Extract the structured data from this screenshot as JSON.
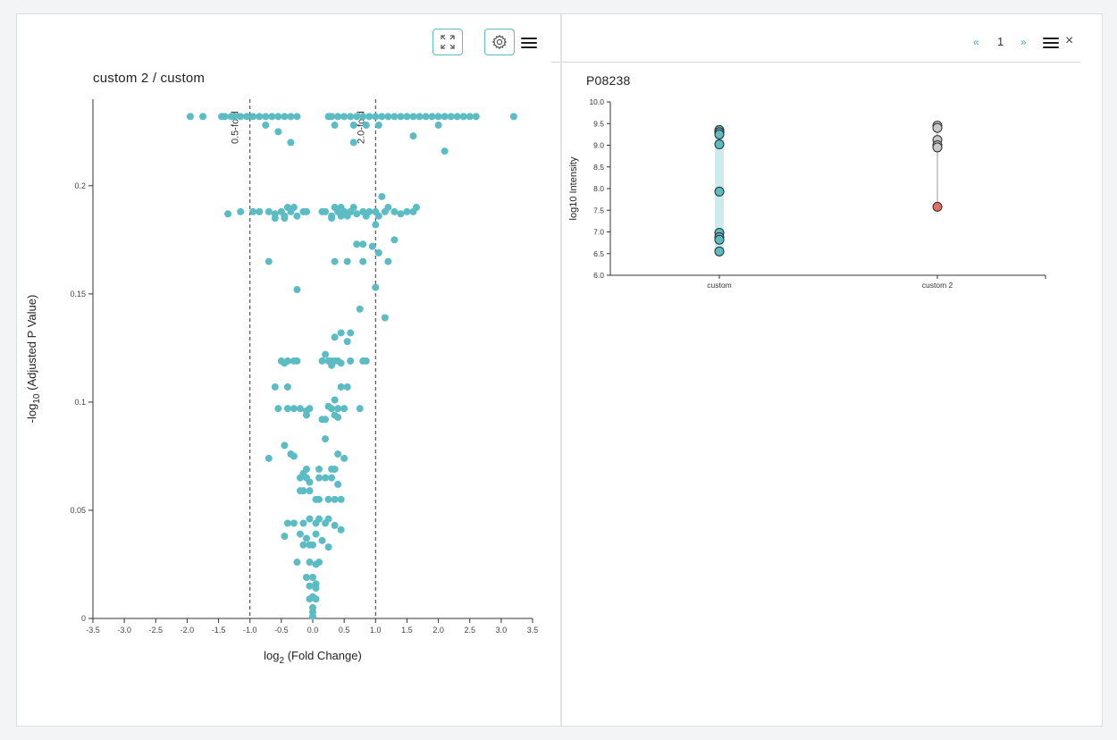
{
  "left_panel": {
    "title": "custom 2 / custom",
    "expand_button_icon": "expand-icon",
    "settings_button_icon": "gear-icon",
    "menu_icon": "hamburger-menu-icon"
  },
  "right_panel": {
    "pager": {
      "prev": "«",
      "page": "1",
      "next": "»"
    },
    "menu_icon": "hamburger-menu-icon",
    "close": "×",
    "title": "P08238"
  },
  "colors": {
    "point": "#5bbcc4",
    "point_outline": "#2b2b2b",
    "grey_point": "#c9c9c9",
    "red_point": "#e07060",
    "axis": "#333333"
  },
  "chart_data": [
    {
      "type": "scatter",
      "title": "custom 2 / custom",
      "xlabel": "log2 (Fold Change)",
      "ylabel": "-log10 (Adjusted P Value)",
      "xlim": [
        -3.5,
        3.5
      ],
      "ylim": [
        0,
        0.24
      ],
      "xticks": [
        "-3.5",
        "-3.0",
        "-2.5",
        "-2.0",
        "-1.5",
        "-1.0",
        "-0.5",
        "0.0",
        "0.5",
        "1.0",
        "1.5",
        "2.0",
        "2.5",
        "3.0",
        "3.5"
      ],
      "yticks": [
        "0",
        "0.05",
        "0.1",
        "0.15",
        "0.2"
      ],
      "threshold_lines": [
        {
          "x": -1.0,
          "label": "0.5-fold"
        },
        {
          "x": 1.0,
          "label": "2.0-fold"
        }
      ],
      "points": [
        [
          -1.95,
          0.232
        ],
        [
          -1.75,
          0.232
        ],
        [
          -1.45,
          0.232
        ],
        [
          -1.4,
          0.232
        ],
        [
          -1.3,
          0.232
        ],
        [
          -1.25,
          0.232
        ],
        [
          -1.15,
          0.232
        ],
        [
          -1.05,
          0.232
        ],
        [
          -0.95,
          0.232
        ],
        [
          -0.85,
          0.232
        ],
        [
          -0.75,
          0.232
        ],
        [
          -0.65,
          0.232
        ],
        [
          -0.55,
          0.232
        ],
        [
          -0.45,
          0.232
        ],
        [
          -0.35,
          0.232
        ],
        [
          -0.25,
          0.232
        ],
        [
          -0.75,
          0.228
        ],
        [
          -0.55,
          0.225
        ],
        [
          -0.35,
          0.22
        ],
        [
          0.25,
          0.232
        ],
        [
          0.3,
          0.232
        ],
        [
          0.4,
          0.232
        ],
        [
          0.5,
          0.232
        ],
        [
          0.6,
          0.232
        ],
        [
          0.7,
          0.232
        ],
        [
          0.8,
          0.232
        ],
        [
          0.9,
          0.232
        ],
        [
          1.0,
          0.232
        ],
        [
          1.1,
          0.232
        ],
        [
          1.2,
          0.232
        ],
        [
          1.3,
          0.232
        ],
        [
          1.4,
          0.232
        ],
        [
          1.5,
          0.232
        ],
        [
          1.6,
          0.232
        ],
        [
          1.7,
          0.232
        ],
        [
          1.8,
          0.232
        ],
        [
          1.9,
          0.232
        ],
        [
          2.0,
          0.232
        ],
        [
          2.1,
          0.232
        ],
        [
          2.2,
          0.232
        ],
        [
          2.3,
          0.232
        ],
        [
          2.4,
          0.232
        ],
        [
          2.5,
          0.232
        ],
        [
          2.6,
          0.232
        ],
        [
          3.2,
          0.232
        ],
        [
          0.35,
          0.228
        ],
        [
          0.65,
          0.228
        ],
        [
          0.85,
          0.228
        ],
        [
          1.05,
          0.228
        ],
        [
          2.0,
          0.228
        ],
        [
          1.6,
          0.223
        ],
        [
          0.65,
          0.22
        ],
        [
          2.1,
          0.216
        ],
        [
          -1.35,
          0.187
        ],
        [
          -1.15,
          0.188
        ],
        [
          -0.95,
          0.188
        ],
        [
          -0.85,
          0.188
        ],
        [
          -0.7,
          0.188
        ],
        [
          -0.6,
          0.187
        ],
        [
          -0.5,
          0.188
        ],
        [
          -0.45,
          0.186
        ],
        [
          -0.4,
          0.19
        ],
        [
          -0.35,
          0.188
        ],
        [
          -0.3,
          0.19
        ],
        [
          -0.25,
          0.186
        ],
        [
          -0.15,
          0.188
        ],
        [
          -0.1,
          0.188
        ],
        [
          -0.45,
          0.185
        ],
        [
          -0.6,
          0.185
        ],
        [
          0.15,
          0.188
        ],
        [
          0.2,
          0.188
        ],
        [
          0.3,
          0.186
        ],
        [
          0.35,
          0.19
        ],
        [
          0.4,
          0.188
        ],
        [
          0.45,
          0.19
        ],
        [
          0.5,
          0.188
        ],
        [
          0.55,
          0.186
        ],
        [
          0.6,
          0.188
        ],
        [
          0.65,
          0.19
        ],
        [
          0.7,
          0.187
        ],
        [
          0.8,
          0.188
        ],
        [
          0.85,
          0.186
        ],
        [
          0.9,
          0.188
        ],
        [
          1.0,
          0.188
        ],
        [
          1.05,
          0.186
        ],
        [
          1.15,
          0.188
        ],
        [
          1.2,
          0.19
        ],
        [
          1.3,
          0.188
        ],
        [
          1.4,
          0.187
        ],
        [
          1.5,
          0.188
        ],
        [
          1.6,
          0.188
        ],
        [
          1.65,
          0.19
        ],
        [
          0.45,
          0.186
        ],
        [
          0.3,
          0.185
        ],
        [
          1.1,
          0.195
        ],
        [
          1.0,
          0.182
        ],
        [
          0.7,
          0.173
        ],
        [
          0.8,
          0.173
        ],
        [
          0.95,
          0.172
        ],
        [
          1.3,
          0.175
        ],
        [
          -0.7,
          0.165
        ],
        [
          0.35,
          0.165
        ],
        [
          0.55,
          0.165
        ],
        [
          0.8,
          0.165
        ],
        [
          1.05,
          0.169
        ],
        [
          1.2,
          0.165
        ],
        [
          1.0,
          0.153
        ],
        [
          -0.25,
          0.152
        ],
        [
          0.75,
          0.143
        ],
        [
          1.15,
          0.139
        ],
        [
          0.45,
          0.132
        ],
        [
          0.6,
          0.132
        ],
        [
          0.35,
          0.13
        ],
        [
          0.55,
          0.128
        ],
        [
          0.2,
          0.122
        ],
        [
          -0.5,
          0.119
        ],
        [
          -0.4,
          0.119
        ],
        [
          -0.3,
          0.119
        ],
        [
          -0.25,
          0.119
        ],
        [
          -0.45,
          0.118
        ],
        [
          0.15,
          0.119
        ],
        [
          0.25,
          0.119
        ],
        [
          0.3,
          0.119
        ],
        [
          0.35,
          0.119
        ],
        [
          0.4,
          0.119
        ],
        [
          0.45,
          0.118
        ],
        [
          0.6,
          0.119
        ],
        [
          0.8,
          0.119
        ],
        [
          0.85,
          0.119
        ],
        [
          0.3,
          0.117
        ],
        [
          -0.6,
          0.107
        ],
        [
          -0.4,
          0.107
        ],
        [
          0.45,
          0.107
        ],
        [
          0.55,
          0.107
        ],
        [
          0.35,
          0.101
        ],
        [
          0.25,
          0.098
        ],
        [
          -0.55,
          0.097
        ],
        [
          -0.4,
          0.097
        ],
        [
          -0.3,
          0.097
        ],
        [
          -0.2,
          0.097
        ],
        [
          -0.1,
          0.096
        ],
        [
          -0.05,
          0.097
        ],
        [
          0.3,
          0.097
        ],
        [
          0.4,
          0.097
        ],
        [
          0.5,
          0.097
        ],
        [
          0.75,
          0.097
        ],
        [
          -0.1,
          0.094
        ],
        [
          0.35,
          0.094
        ],
        [
          0.4,
          0.093
        ],
        [
          0.2,
          0.092
        ],
        [
          0.15,
          0.092
        ],
        [
          0.2,
          0.083
        ],
        [
          -0.45,
          0.08
        ],
        [
          -0.7,
          0.074
        ],
        [
          -0.35,
          0.076
        ],
        [
          -0.3,
          0.075
        ],
        [
          0.4,
          0.076
        ],
        [
          0.5,
          0.074
        ],
        [
          -0.1,
          0.069
        ],
        [
          -0.15,
          0.067
        ],
        [
          0.1,
          0.069
        ],
        [
          0.3,
          0.069
        ],
        [
          0.35,
          0.069
        ],
        [
          -0.2,
          0.065
        ],
        [
          -0.1,
          0.065
        ],
        [
          -0.05,
          0.063
        ],
        [
          0.1,
          0.065
        ],
        [
          0.2,
          0.065
        ],
        [
          0.3,
          0.065
        ],
        [
          0.4,
          0.062
        ],
        [
          -0.2,
          0.059
        ],
        [
          -0.15,
          0.059
        ],
        [
          -0.05,
          0.059
        ],
        [
          0.05,
          0.055
        ],
        [
          0.1,
          0.055
        ],
        [
          0.25,
          0.055
        ],
        [
          0.35,
          0.055
        ],
        [
          0.45,
          0.055
        ],
        [
          -0.4,
          0.044
        ],
        [
          -0.3,
          0.044
        ],
        [
          -0.15,
          0.044
        ],
        [
          -0.05,
          0.046
        ],
        [
          0.05,
          0.044
        ],
        [
          0.1,
          0.046
        ],
        [
          0.2,
          0.044
        ],
        [
          0.25,
          0.046
        ],
        [
          0.35,
          0.043
        ],
        [
          0.45,
          0.041
        ],
        [
          -0.45,
          0.038
        ],
        [
          -0.2,
          0.039
        ],
        [
          -0.1,
          0.037
        ],
        [
          0.05,
          0.039
        ],
        [
          0.15,
          0.036
        ],
        [
          -0.15,
          0.034
        ],
        [
          -0.05,
          0.034
        ],
        [
          0.0,
          0.034
        ],
        [
          0.25,
          0.033
        ],
        [
          -0.25,
          0.026
        ],
        [
          -0.05,
          0.026
        ],
        [
          0.05,
          0.025
        ],
        [
          0.1,
          0.026
        ],
        [
          -0.1,
          0.019
        ],
        [
          0.0,
          0.019
        ],
        [
          0.05,
          0.016
        ],
        [
          -0.05,
          0.015
        ],
        [
          0.05,
          0.014
        ],
        [
          0.0,
          0.01
        ],
        [
          -0.05,
          0.009
        ],
        [
          0.05,
          0.009
        ],
        [
          0.0,
          0.005
        ],
        [
          0.0,
          0.003
        ],
        [
          0.0,
          0.001
        ]
      ]
    },
    {
      "type": "scatter",
      "title": "P08238",
      "xlabel": "",
      "ylabel": "log10 Intensity",
      "categories": [
        "custom",
        "custom 2"
      ],
      "ylim": [
        6.0,
        10.0
      ],
      "yticks": [
        "6.0",
        "6.5",
        "7.0",
        "7.5",
        "8.0",
        "8.5",
        "9.0",
        "9.5",
        "10.0"
      ],
      "series": [
        {
          "category": "custom",
          "values": [
            9.35,
            9.3,
            9.25,
            9.02,
            7.93,
            6.98,
            6.88,
            6.82,
            6.55
          ],
          "color": "#5bbcc4",
          "range": [
            6.55,
            9.35
          ]
        },
        {
          "category": "custom 2",
          "values": [
            9.45,
            9.4,
            9.12,
            9.0,
            8.95
          ],
          "color": "#c9c9c9",
          "range": [
            7.58,
            9.45
          ]
        },
        {
          "category": "custom 2",
          "values": [
            7.58
          ],
          "color": "#e07060"
        }
      ]
    }
  ]
}
